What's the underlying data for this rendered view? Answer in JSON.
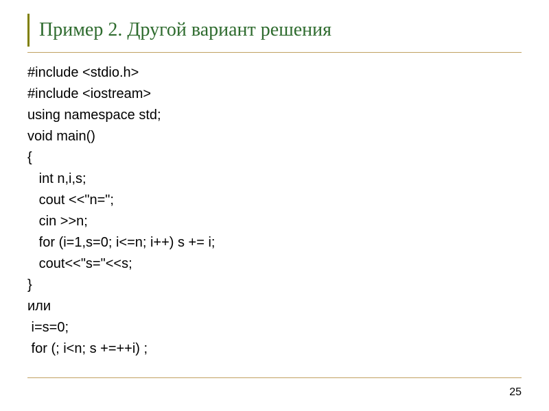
{
  "slide": {
    "title": "Пример 2. Другой вариант решения",
    "title_color": "#2e6b2e",
    "title_fontsize": 28,
    "border_color": "#808000",
    "rule_color": "#c0a060",
    "background_color": "#ffffff",
    "code_fontsize": 20,
    "code_color": "#000000",
    "code_lines": [
      "#include <stdio.h>",
      "#include <iostream>",
      "using namespace std;",
      "void main()",
      "{",
      "   int n,i,s;",
      "   cout <<\"n=\";",
      "   cin >>n;",
      "   for (i=1,s=0; i<=n; i++) s += i;",
      "   cout<<\"s=\"<<s;",
      "}",
      "или",
      " i=s=0;",
      " for (; i<n; s +=++i) ;"
    ],
    "page_number": "25"
  }
}
